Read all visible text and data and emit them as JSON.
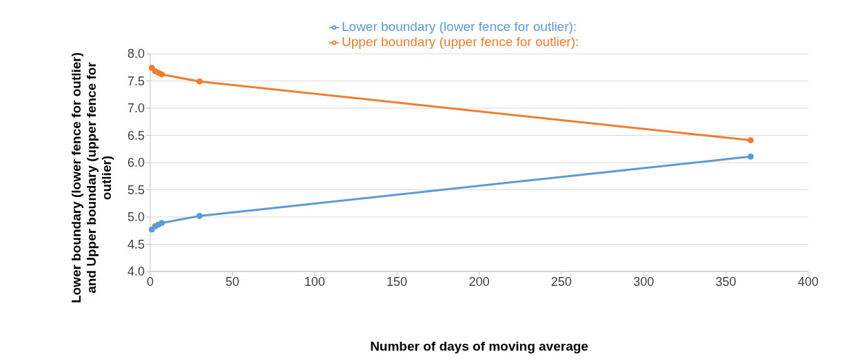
{
  "chart_data": {
    "type": "line",
    "xlabel": "Number of days of moving average",
    "ylabel": "Lower boundary (lower fence for outlier) and Upper boundary (upper fence for outlier)",
    "x": [
      1,
      3,
      5,
      7,
      30,
      365
    ],
    "series": [
      {
        "name": "Lower boundary (lower fence for outlier):",
        "color": "#5b9bd5",
        "values": [
          4.77,
          4.83,
          4.86,
          4.89,
          5.02,
          6.11
        ]
      },
      {
        "name": "Upper boundary (upper fence for outlier):",
        "color": "#ed7d31",
        "values": [
          7.74,
          7.68,
          7.65,
          7.62,
          7.49,
          6.41
        ]
      }
    ],
    "xlim": [
      0,
      400
    ],
    "xticks": [
      0,
      50,
      100,
      150,
      200,
      250,
      300,
      350,
      400
    ],
    "ylim": [
      4.0,
      8.0
    ],
    "yticks": [
      {
        "value": 4,
        "label": "4.0"
      },
      {
        "value": 4.5,
        "label": "4.5"
      },
      {
        "value": 5,
        "label": "5.0"
      },
      {
        "value": 5.5,
        "label": "5.5"
      },
      {
        "value": 6,
        "label": "6.0"
      },
      {
        "value": 6.5,
        "label": "6.5"
      },
      {
        "value": 7,
        "label": "7.0"
      },
      {
        "value": 7.5,
        "label": "7.5"
      },
      {
        "value": 8,
        "label": "8.0"
      }
    ],
    "grid": "y",
    "legend": "top",
    "marker": "circle",
    "line_style": "solid"
  }
}
